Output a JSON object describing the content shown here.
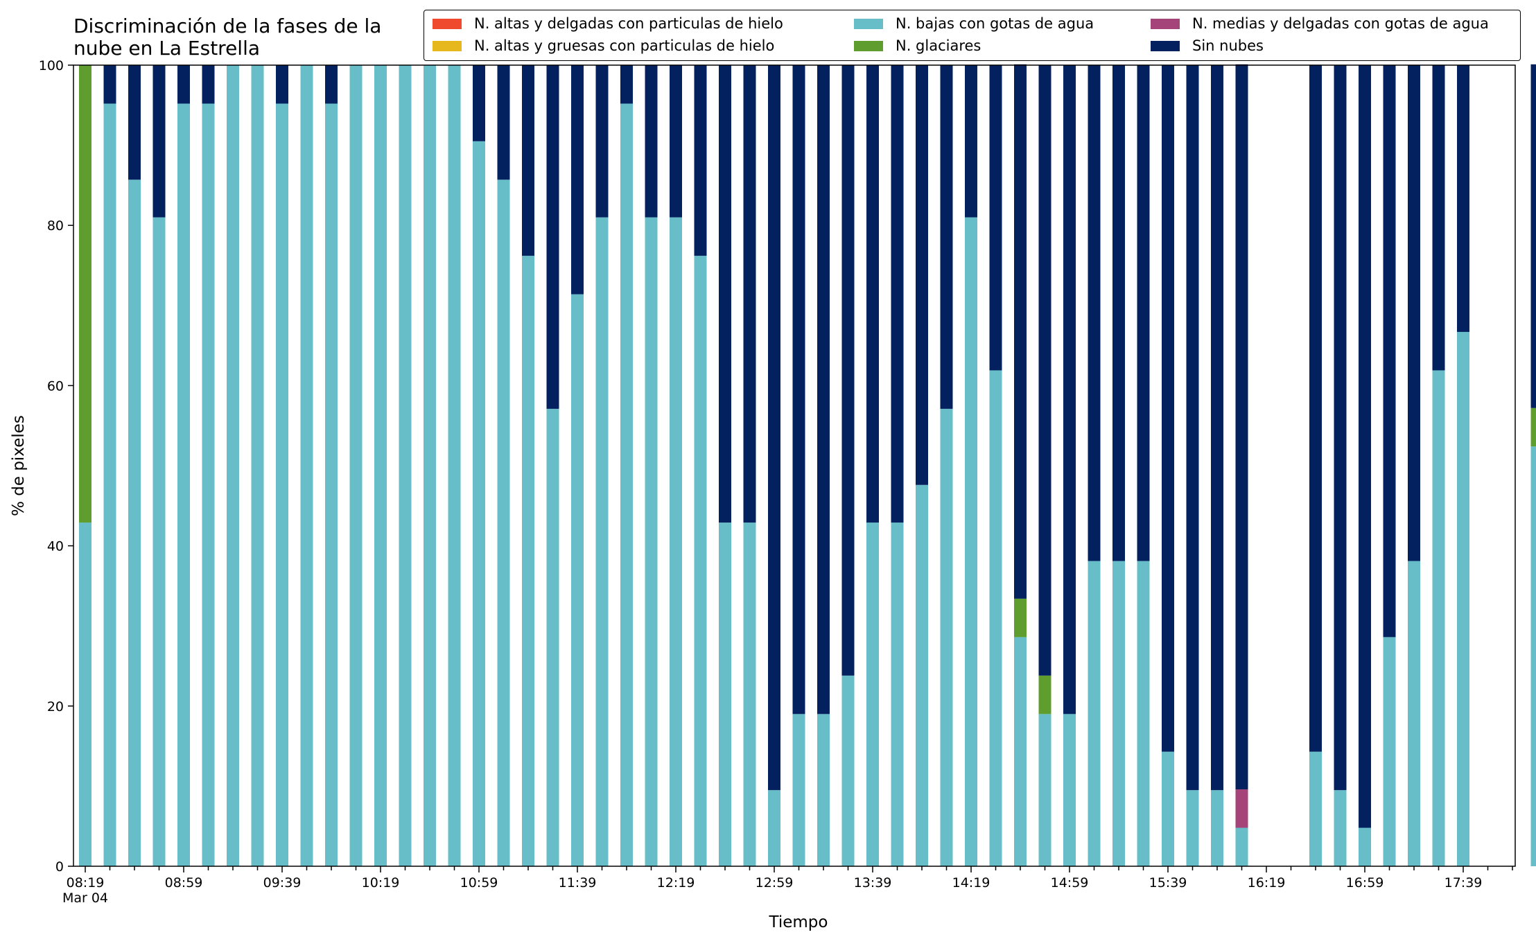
{
  "chart_data": {
    "type": "bar",
    "stacked": true,
    "title": "Discriminación de la fases de la\nnube en La Estrella",
    "xlabel": "Tiempo",
    "ylabel": "% de pixeles",
    "ylim": [
      0,
      100
    ],
    "yticks": [
      0,
      20,
      40,
      60,
      80,
      100
    ],
    "grid": false,
    "legend_position": "top",
    "start_time": "08:19",
    "interval_minutes": 10,
    "xtick_labels": [
      "08:19\nMar 04",
      "08:59",
      "09:39",
      "10:19",
      "10:59",
      "11:39",
      "12:19",
      "12:59",
      "13:39",
      "14:19",
      "14:59",
      "15:39",
      "16:19",
      "16:59",
      "17:39"
    ],
    "series": [
      {
        "name": "N. altas y delgadas con particulas de hielo",
        "color": "#ef4a2e",
        "values": [
          0,
          0,
          0,
          0,
          0,
          0,
          0,
          0,
          0,
          0,
          0,
          0,
          0,
          0,
          0,
          0,
          0,
          0,
          0,
          0,
          0,
          0,
          0,
          0,
          0,
          0,
          0,
          0,
          0,
          0,
          0,
          0,
          0,
          0,
          0,
          0,
          0,
          0,
          0,
          0,
          0,
          0,
          0,
          0,
          0,
          0,
          0,
          0,
          0,
          0,
          0,
          0,
          0,
          0,
          0,
          0,
          0,
          0,
          0,
          0
        ]
      },
      {
        "name": "N. altas y gruesas con particulas de hielo",
        "color": "#e6b81e",
        "values": [
          0,
          0,
          0,
          0,
          0,
          0,
          0,
          0,
          0,
          0,
          0,
          0,
          0,
          0,
          0,
          0,
          0,
          0,
          0,
          0,
          0,
          0,
          0,
          0,
          0,
          0,
          0,
          0,
          0,
          0,
          0,
          0,
          0,
          0,
          0,
          0,
          0,
          0,
          0,
          0,
          0,
          0,
          0,
          0,
          0,
          0,
          0,
          0,
          0,
          0,
          0,
          0,
          0,
          0,
          0,
          0,
          0,
          0,
          0,
          0
        ]
      },
      {
        "name": "N. bajas con gotas de agua",
        "color": "#67bec9",
        "values": [
          42.9,
          95.2,
          85.7,
          81,
          95.2,
          95.2,
          100,
          100,
          95.2,
          100,
          95.2,
          100,
          100,
          100,
          100,
          100,
          90.5,
          85.7,
          76.2,
          57.1,
          71.4,
          81,
          95.2,
          81,
          81,
          76.2,
          42.9,
          42.9,
          9.5,
          19,
          19,
          23.8,
          42.9,
          42.9,
          47.6,
          57.1,
          81,
          61.9,
          28.6,
          19,
          19,
          38.1,
          38.1,
          38.1,
          14.3,
          9.5,
          9.5,
          4.8,
          0,
          0,
          14.3,
          9.5,
          4.8,
          28.6,
          38.1,
          61.9,
          66.7,
          0,
          0,
          52.4
        ]
      },
      {
        "name": "N. glaciares",
        "color": "#5f9e2e",
        "values": [
          57.1,
          0,
          0,
          0,
          0,
          0,
          0,
          0,
          0,
          0,
          0,
          0,
          0,
          0,
          0,
          0,
          0,
          0,
          0,
          0,
          0,
          0,
          0,
          0,
          0,
          0,
          0,
          0,
          0,
          0,
          0,
          0,
          0,
          0,
          0,
          0,
          0,
          0,
          4.8,
          4.8,
          0,
          0,
          0,
          0,
          0,
          0,
          0,
          0,
          0,
          0,
          0,
          0,
          0,
          0,
          0,
          0,
          0,
          0,
          0,
          4.8
        ]
      },
      {
        "name": "N. medias y delgadas con gotas de agua",
        "color": "#a54479",
        "values": [
          0,
          0,
          0,
          0,
          0,
          0,
          0,
          0,
          0,
          0,
          0,
          0,
          0,
          0,
          0,
          0,
          0,
          0,
          0,
          0,
          0,
          0,
          0,
          0,
          0,
          0,
          0,
          0,
          0,
          0,
          0,
          0,
          0,
          0,
          0,
          0,
          0,
          0,
          0,
          0,
          0,
          0,
          0,
          0,
          0,
          0,
          0,
          4.8,
          0,
          0,
          0,
          0,
          0,
          0,
          0,
          0,
          0,
          0,
          0,
          0
        ]
      },
      {
        "name": "Sin nubes",
        "color": "#03205f",
        "values": [
          0,
          4.8,
          14.3,
          19,
          4.8,
          4.8,
          0,
          0,
          4.8,
          0,
          4.8,
          0,
          0,
          0,
          0,
          0,
          9.5,
          14.3,
          23.8,
          42.9,
          28.6,
          19,
          4.8,
          19,
          19,
          23.8,
          57.1,
          57.1,
          90.5,
          81,
          81,
          76.2,
          57.1,
          57.1,
          52.4,
          42.9,
          19,
          38.1,
          66.7,
          76.2,
          81,
          61.9,
          61.9,
          61.9,
          85.7,
          90.5,
          90.5,
          90.5,
          0,
          0,
          85.7,
          90.5,
          95.2,
          71.4,
          61.9,
          38.1,
          33.3,
          0,
          0,
          42.9
        ]
      }
    ]
  }
}
